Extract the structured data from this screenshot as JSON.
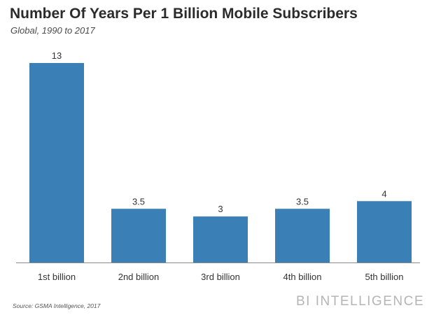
{
  "chart_data": {
    "type": "bar",
    "title": "Number Of Years Per 1 Billion Mobile Subscribers",
    "subtitle": "Global, 1990 to 2017",
    "categories": [
      "1st billion",
      "2nd billion",
      "3rd billion",
      "4th billion",
      "5th billion"
    ],
    "values": [
      13,
      3.5,
      3,
      3.5,
      4
    ],
    "value_labels": [
      "13",
      "3.5",
      "3",
      "3.5",
      "4"
    ],
    "xlabel": "",
    "ylabel": "",
    "ylim": [
      0,
      13
    ],
    "bar_color": "#3a7fb5",
    "axis_color": "#8a8a8a",
    "grid": false
  },
  "footer": {
    "source": "Source: GSMA Intelligence, 2017",
    "brand": "BI INTELLIGENCE"
  }
}
